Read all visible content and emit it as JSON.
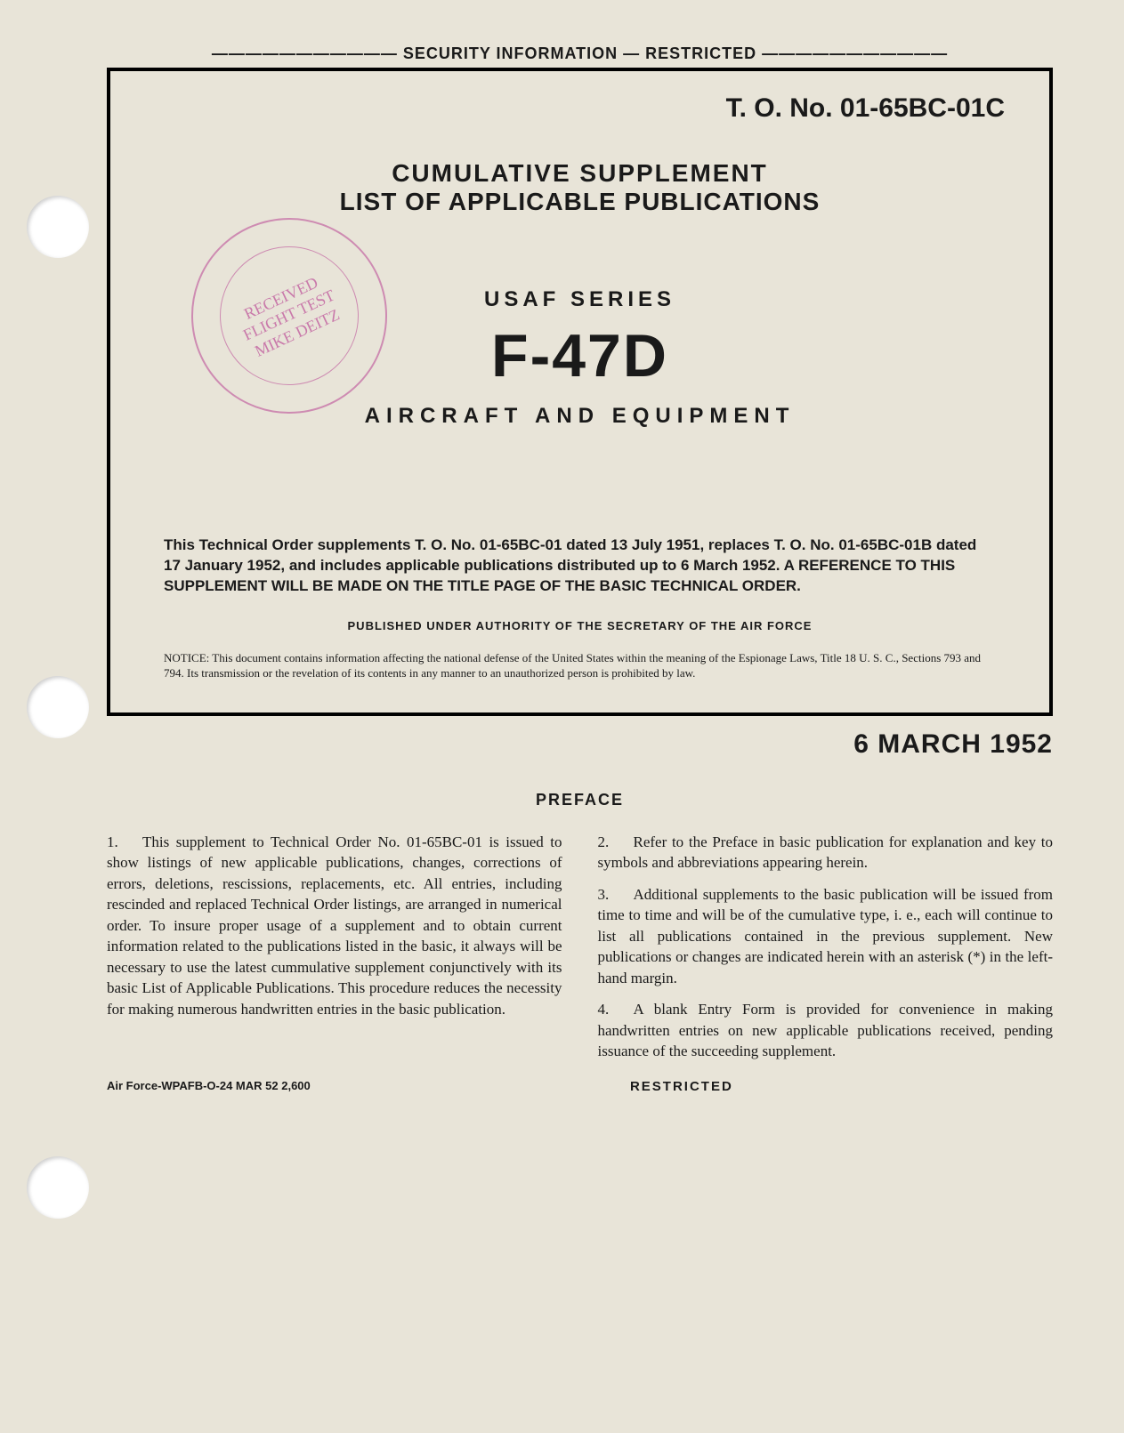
{
  "security_header": "SECURITY INFORMATION — RESTRICTED",
  "frame": {
    "to_number": "T. O. No. 01-65BC-01C",
    "title1": "CUMULATIVE SUPPLEMENT",
    "title2": "LIST OF APPLICABLE PUBLICATIONS",
    "series_label": "USAF SERIES",
    "model": "F-47D",
    "subtitle": "AIRCRAFT AND EQUIPMENT",
    "order_text": "This Technical Order supplements T. O. No. 01-65BC-01 dated 13 July 1951, replaces T. O. No. 01-65BC-01B dated 17 January 1952, and includes applicable publications distributed up to 6 March 1952. A REFERENCE TO THIS SUPPLEMENT WILL BE MADE ON THE TITLE PAGE OF THE BASIC TECHNICAL ORDER.",
    "authority": "PUBLISHED UNDER AUTHORITY OF THE SECRETARY OF THE AIR FORCE",
    "notice": "NOTICE: This document contains information affecting the national defense of the United States within the meaning of the Espionage Laws, Title 18 U. S. C., Sections 793 and 794. Its transmission or the revelation of its contents in any manner to an unauthorized person is prohibited by law."
  },
  "date": "6 MARCH 1952",
  "preface_heading": "PREFACE",
  "preface": {
    "p1_num": "1.",
    "p1": "This supplement to Technical Order No. 01-65BC-01 is issued to show listings of new applicable publications, changes, corrections of errors, deletions, rescissions, replacements, etc. All entries, including rescinded and replaced Technical Order listings, are arranged in numerical order. To insure proper usage of a supplement and to obtain current information related to the publications listed in the basic, it always will be necessary to use the latest cummulative supplement conjunctively with its basic List of Applicable Publications. This procedure reduces the necessity for making numerous handwritten entries in the basic publication.",
    "p2_num": "2.",
    "p2": "Refer to the Preface in basic publication for explanation and key to symbols and abbreviations appearing herein.",
    "p3_num": "3.",
    "p3": "Additional supplements to the basic publication will be issued from time to time and will be of the cumulative type, i. e., each will continue to list all publications contained in the previous supplement. New publications or changes are indicated herein with an asterisk (*) in the left-hand margin.",
    "p4_num": "4.",
    "p4": "A blank Entry Form is provided for convenience in making handwritten entries on new applicable publications received, pending issuance of the succeeding supplement."
  },
  "footer": {
    "left": "Air Force-WPAFB-O-24 MAR 52 2,600",
    "center": "RESTRICTED"
  },
  "stamp_text": "RECEIVED\nFLIGHT TEST\nMIKE DEITZ",
  "colors": {
    "paper": "#e8e4d8",
    "ink": "#1a1a1a",
    "stamp": "rgba(180,50,140,0.6)",
    "hole": "#ffffff"
  }
}
